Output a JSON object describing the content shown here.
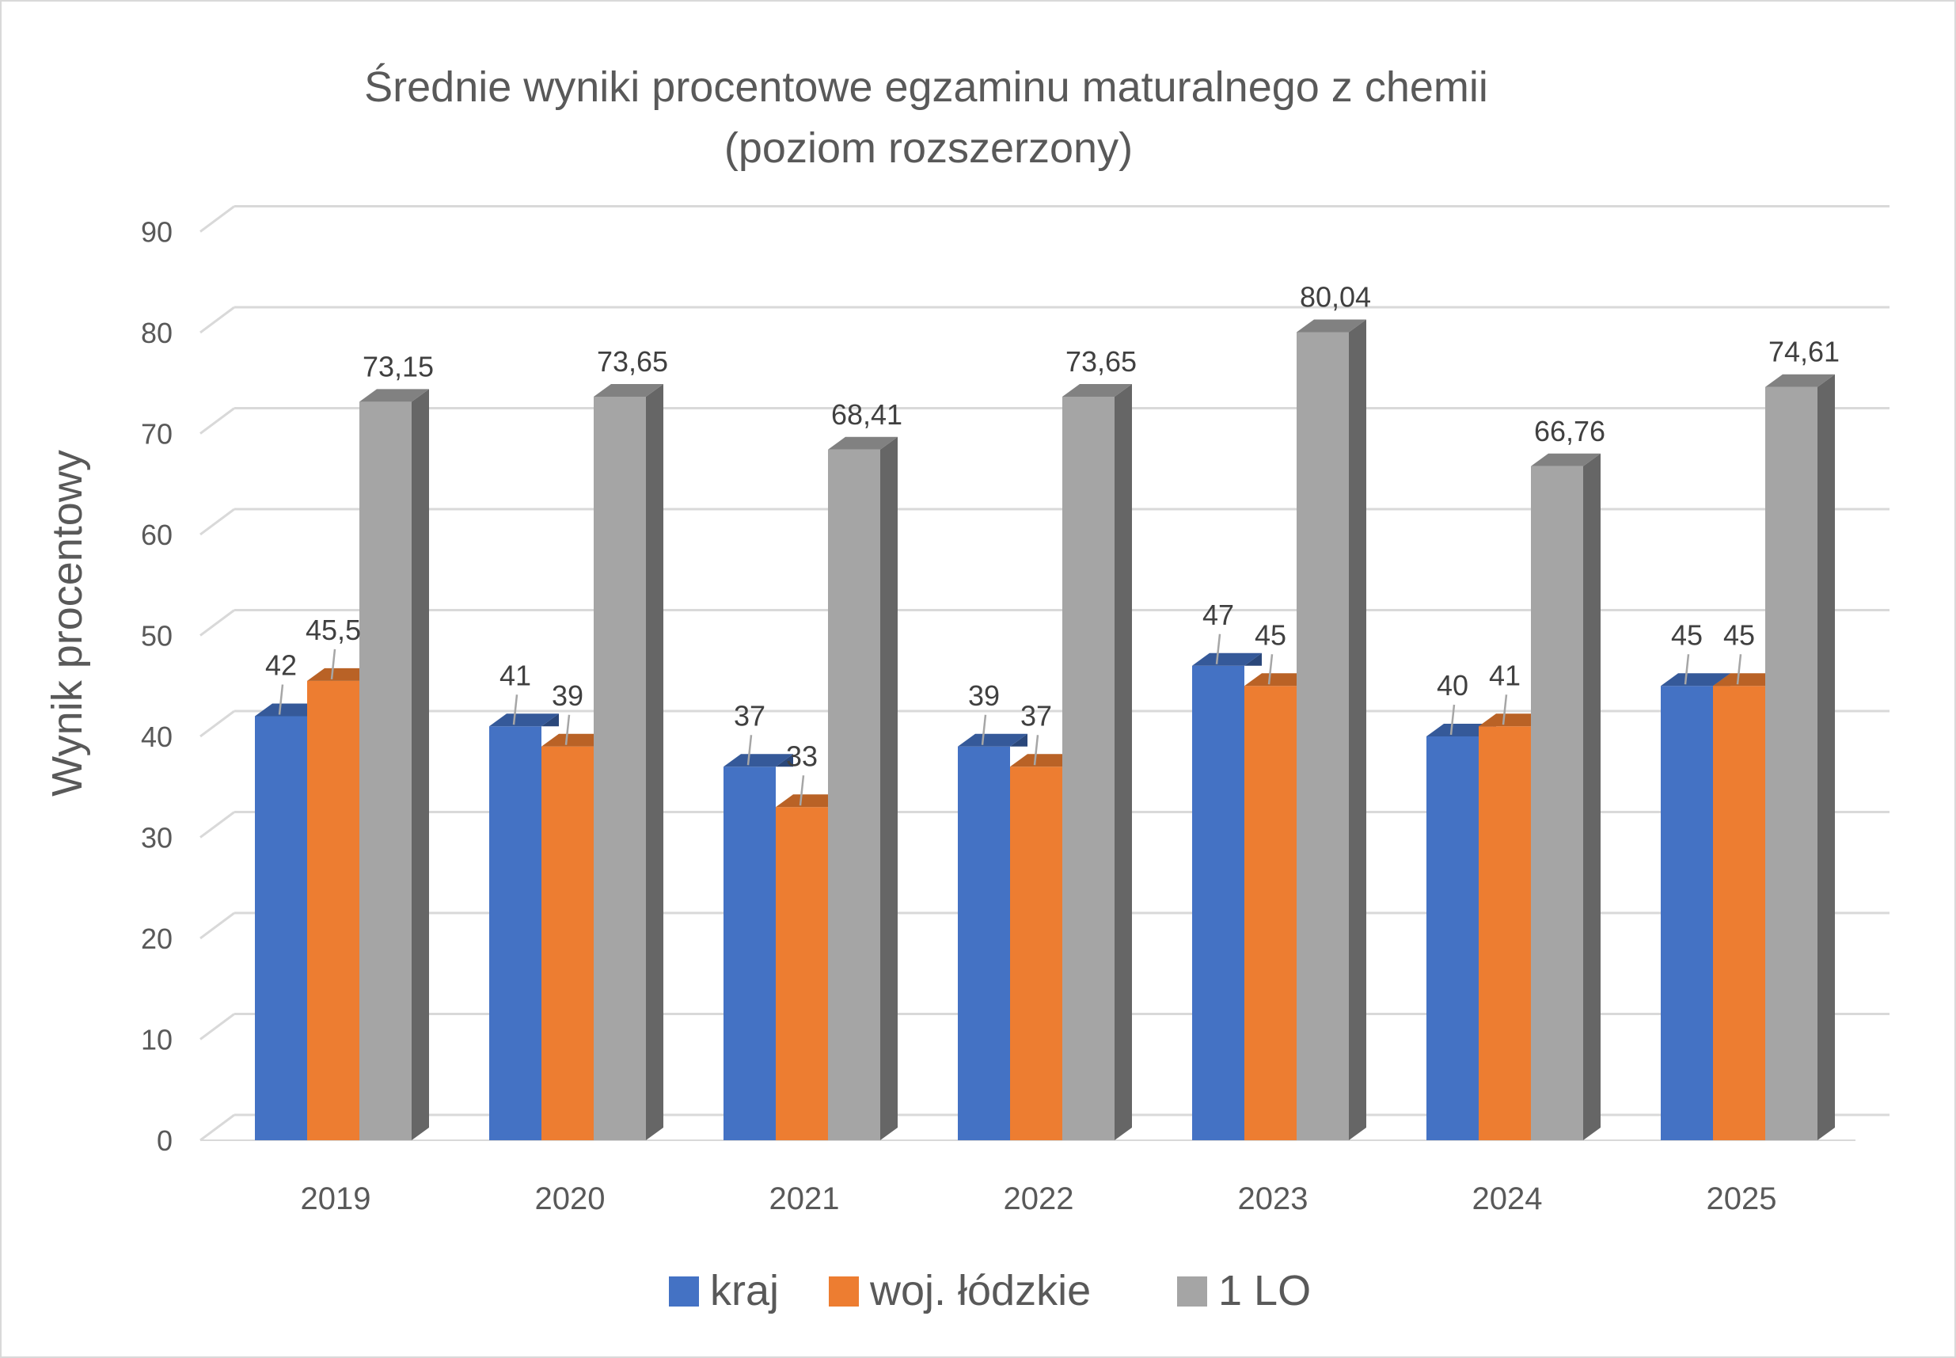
{
  "chart_data": {
    "type": "bar",
    "title": "Średnie wyniki procentowe egzaminu maturalnego z chemii",
    "subtitle": "(poziom rozszerzony)",
    "xlabel": "",
    "ylabel": "Wynik procentowy",
    "ylim": [
      0,
      90
    ],
    "yticks": [
      "0",
      "10",
      "20",
      "30",
      "40",
      "50",
      "60",
      "70",
      "80",
      "90"
    ],
    "categories": [
      "2019",
      "2020",
      "2021",
      "2022",
      "2023",
      "2024",
      "2025"
    ],
    "series": [
      {
        "name": "kraj",
        "color": "#4472c4",
        "values": [
          42,
          41,
          37,
          39,
          47,
          40,
          45
        ],
        "labels": [
          "42",
          "41",
          "37",
          "39",
          "47",
          "40",
          "45"
        ]
      },
      {
        "name": "woj. łódzkie",
        "color": "#ed7d31",
        "values": [
          45.5,
          39,
          33,
          37,
          45,
          41,
          45
        ],
        "labels": [
          "45,5",
          "39",
          "33",
          "37",
          "45",
          "41",
          "45"
        ]
      },
      {
        "name": "1 LO",
        "color": "#a5a5a5",
        "values": [
          73.15,
          73.65,
          68.41,
          73.65,
          80.04,
          66.76,
          74.61
        ],
        "labels": [
          "73,15",
          "73,65",
          "68,41",
          "73,65",
          "80,04",
          "66,76",
          "74,61"
        ]
      }
    ],
    "grid": true,
    "legend": "bottom",
    "style": "3d-clustered-column"
  }
}
